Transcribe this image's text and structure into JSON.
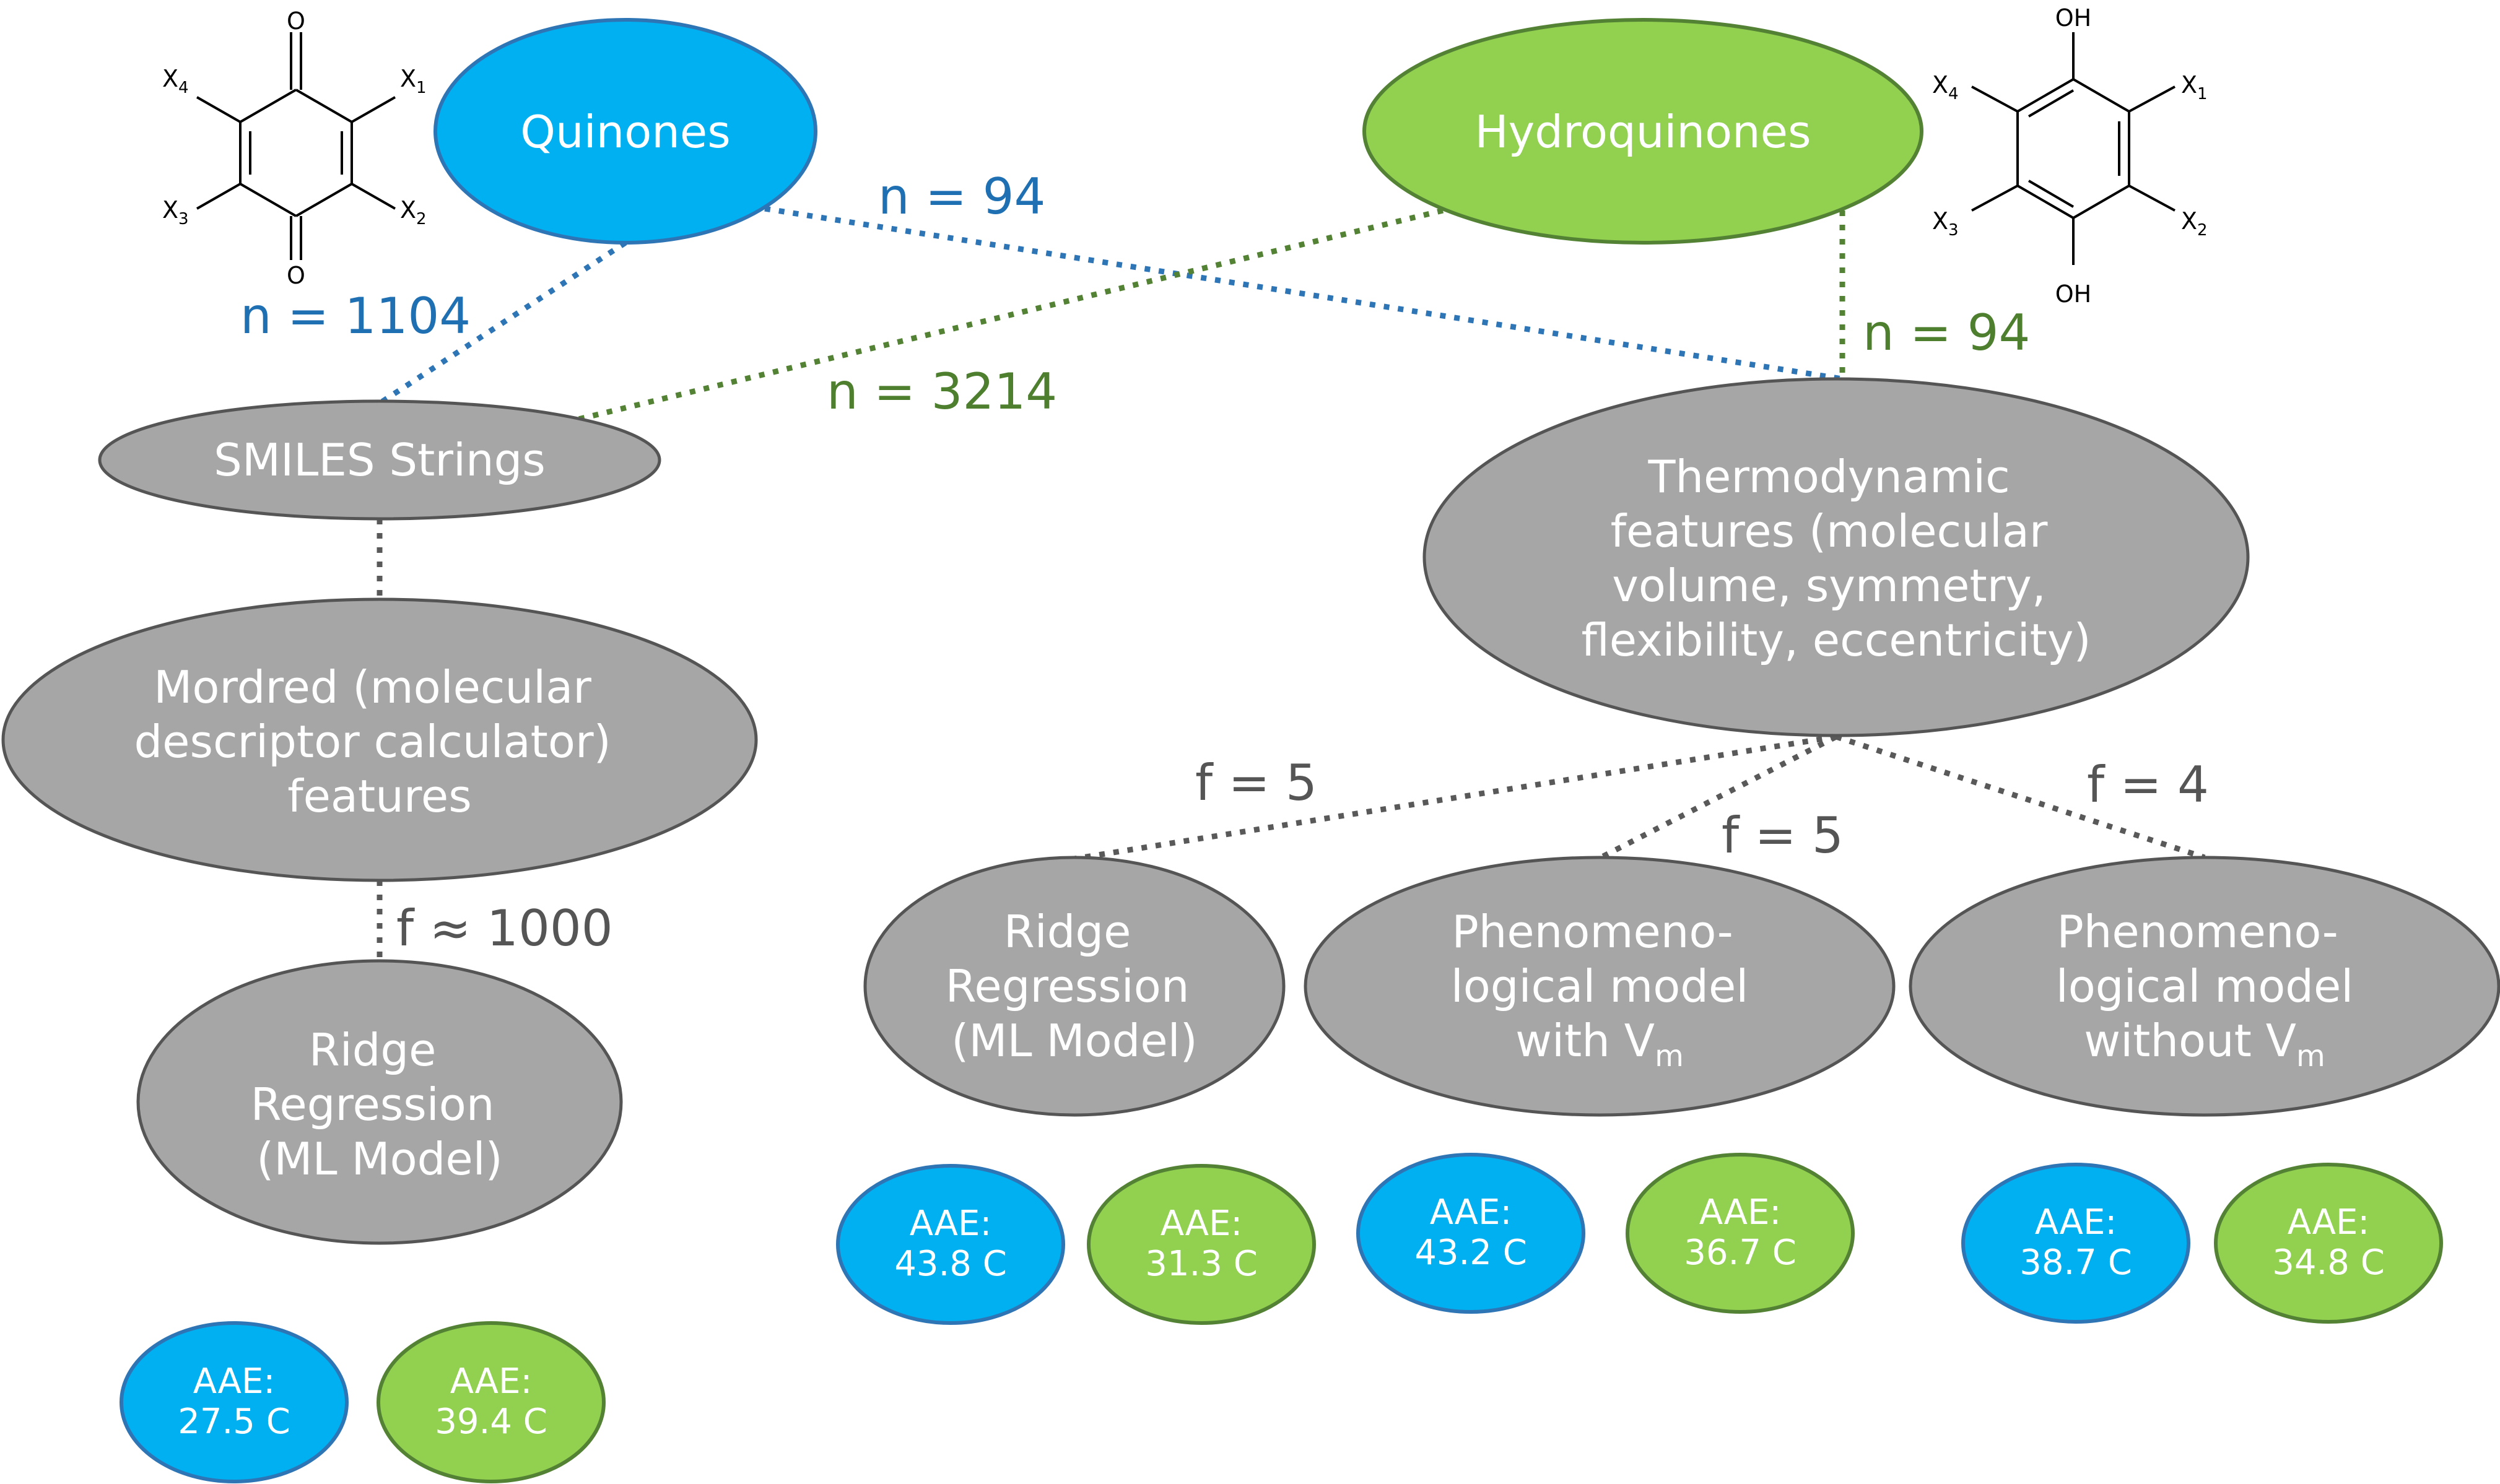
{
  "colors": {
    "quinone_fill": "#00B0F0",
    "quinone_stroke": "#2E75B6",
    "quinone_line": "#2E75B6",
    "quinone_label": "#1F6FB3",
    "hydroquinone_fill": "#92D050",
    "hydroquinone_stroke": "#548235",
    "hydroquinone_line": "#548235",
    "hydroquinone_label": "#4E7F2F",
    "process_fill": "#A6A6A6",
    "process_stroke": "#555555",
    "process_line": "#595959",
    "process_label": "#555555"
  },
  "nodes": {
    "quinones": "Quinones",
    "hydroquinones": "Hydroquinones",
    "smiles": "SMILES Strings",
    "mordred": [
      "Mordred (molecular",
      "descriptor calculator)",
      "features"
    ],
    "thermo": [
      "Thermodynamic",
      "features (molecular",
      "volume, symmetry,",
      "flexibility, eccentricity)"
    ],
    "ridge_left": [
      "Ridge",
      "Regression",
      "(ML Model)"
    ],
    "ridge_right": [
      "Ridge",
      "Regression",
      "(ML Model)"
    ],
    "pheno_with": {
      "line1": "Phenomeno-",
      "line2": "logical model",
      "line3_prefix": "with V",
      "line3_sub": "m"
    },
    "pheno_without": {
      "line1": "Phenomeno-",
      "line2": "logical model",
      "line3_prefix": "without V",
      "line3_sub": "m"
    }
  },
  "edge_labels": {
    "quinones_smiles": "n = 1104",
    "quinones_thermo": "n = 94",
    "hydroquinones_smiles": "n = 3214",
    "hydroquinones_thermo": "n = 94",
    "mordred_ridge": "f ≈ 1000",
    "thermo_ridge": "f = 5",
    "thermo_pheno_with": "f = 5",
    "thermo_pheno_without": "f = 4"
  },
  "results": {
    "ridge_left": {
      "quinone": [
        "AAE:",
        "27.5 C"
      ],
      "hydroquinone": [
        "AAE:",
        "39.4 C"
      ]
    },
    "ridge_right": {
      "quinone": [
        "AAE:",
        "43.8 C"
      ],
      "hydroquinone": [
        "AAE:",
        "31.3 C"
      ]
    },
    "pheno_with": {
      "quinone": [
        "AAE:",
        "43.2 C"
      ],
      "hydroquinone": [
        "AAE:",
        "36.7 C"
      ]
    },
    "pheno_without": {
      "quinone": [
        "AAE:",
        "38.7 C"
      ],
      "hydroquinone": [
        "AAE:",
        "34.8 C"
      ]
    }
  },
  "structures": {
    "quinone": {
      "top": "O",
      "bottom": "O",
      "x1": "X",
      "x1_sub": "1",
      "x2": "X",
      "x2_sub": "2",
      "x3": "X",
      "x3_sub": "3",
      "x4": "X",
      "x4_sub": "4"
    },
    "hydroquinone": {
      "top": "OH",
      "bottom": "OH",
      "x1": "X",
      "x1_sub": "1",
      "x2": "X",
      "x2_sub": "2",
      "x3": "X",
      "x3_sub": "3",
      "x4": "X",
      "x4_sub": "4"
    }
  }
}
